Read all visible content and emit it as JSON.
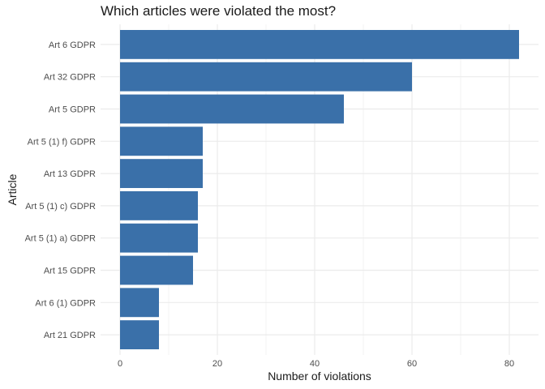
{
  "chart_data": {
    "type": "bar",
    "orientation": "horizontal",
    "title": "Which articles were violated the most?",
    "xlabel": "Number of violations",
    "ylabel": "Article",
    "categories": [
      "Art 6 GDPR",
      "Art 32 GDPR",
      "Art 5 GDPR",
      "Art 5 (1) f) GDPR",
      "Art 13 GDPR",
      "Art 5 (1) c) GDPR",
      "Art 5 (1) a) GDPR",
      "Art 15 GDPR",
      "Art 6 (1) GDPR",
      "Art 21 GDPR"
    ],
    "values": [
      82,
      60,
      46,
      17,
      17,
      16,
      16,
      15,
      8,
      8
    ],
    "xlim": [
      0,
      82
    ],
    "xticks": [
      0,
      20,
      40,
      60,
      80
    ],
    "grid": true,
    "bar_color": "#3a70a9",
    "grid_color": "#ebebeb"
  }
}
